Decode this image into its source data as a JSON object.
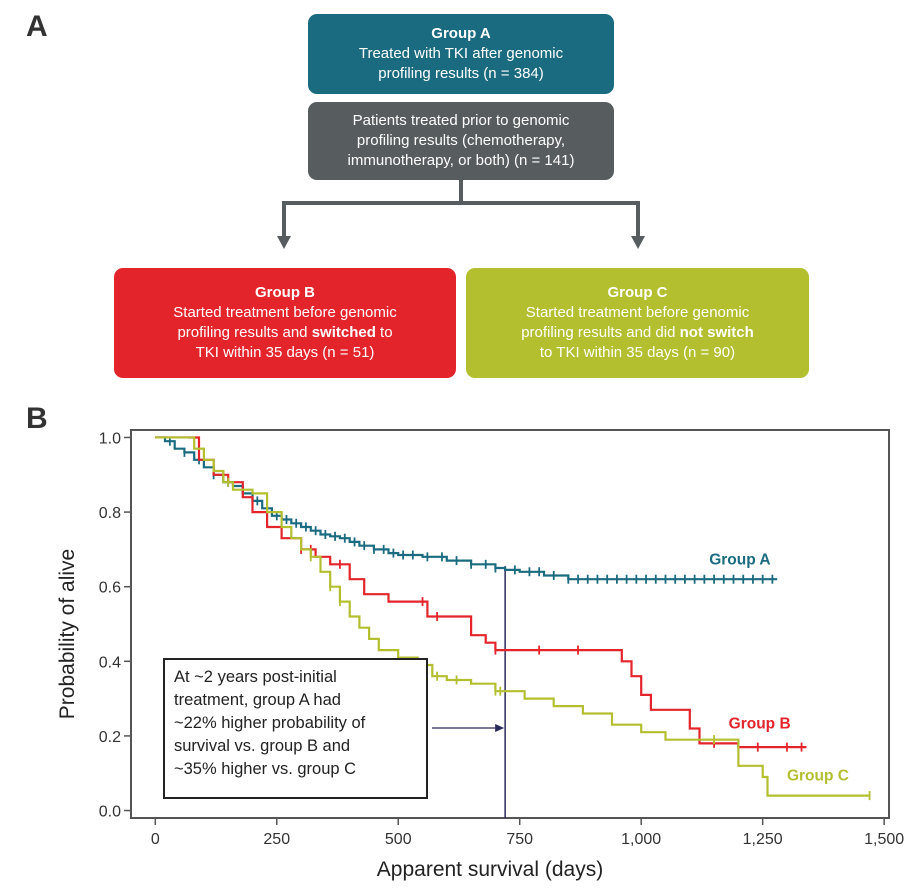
{
  "panelA": {
    "label": "A",
    "groupA": {
      "title": "Group A",
      "lines": [
        "Treated with TKI after genomic",
        "profiling results (n = 384)"
      ]
    },
    "prior": {
      "lines": [
        "Patients treated prior to genomic",
        "profiling results (chemotherapy,",
        "immunotherapy, or both) (n = 141)"
      ]
    },
    "groupB": {
      "title": "Group B",
      "line1": "Started treatment before genomic",
      "line2_pre": "profiling results and ",
      "line2_bold": "switched",
      "line2_post": " to",
      "line3": "TKI within 35 days (n = 51)"
    },
    "groupC": {
      "title": "Group C",
      "line1": "Started treatment before genomic",
      "line2_pre": "profiling results and did ",
      "line2_bold": "not switch",
      "line3": "to TKI within 35 days (n = 90)"
    }
  },
  "panelB": {
    "label": "B",
    "annotation_lines": [
      "At ~2 years post-initial",
      "treatment, group A had",
      "~22% higher probability of",
      "survival vs. group B and",
      "~35% higher vs. group C"
    ]
  },
  "colors": {
    "groupA": "#1a6b80",
    "groupB": "#e3242b",
    "groupC": "#b3bf2f",
    "prior": "#575c5f",
    "arrow": "#575c5f",
    "refline": "#2a2a5a"
  },
  "chart_data": {
    "type": "line",
    "title": "",
    "xlabel": "Apparent survival (days)",
    "ylabel": "Probability of alive",
    "xlim": [
      -50,
      1510
    ],
    "ylim": [
      -0.02,
      1.02
    ],
    "xticks": [
      0,
      250,
      500,
      750,
      1000,
      1250,
      1500
    ],
    "xtick_labels": [
      "0",
      "250",
      "500",
      "750",
      "1,000",
      "1,250",
      "1,500"
    ],
    "yticks": [
      0.0,
      0.2,
      0.4,
      0.6,
      0.8,
      1.0
    ],
    "ytick_labels": [
      "0.0",
      "0.2",
      "0.4",
      "0.6",
      "0.8",
      "1.0"
    ],
    "reference_line_x": 720,
    "series": [
      {
        "name": "Group A",
        "color": "#1a6b80",
        "step": true,
        "x": [
          0,
          20,
          40,
          60,
          80,
          100,
          120,
          140,
          160,
          180,
          200,
          220,
          240,
          260,
          280,
          300,
          320,
          340,
          360,
          380,
          400,
          420,
          450,
          480,
          500,
          550,
          600,
          650,
          700,
          720,
          750,
          800,
          850,
          900,
          1000,
          1100,
          1200,
          1280
        ],
        "y": [
          1.0,
          0.99,
          0.97,
          0.96,
          0.94,
          0.92,
          0.9,
          0.88,
          0.87,
          0.85,
          0.83,
          0.81,
          0.79,
          0.78,
          0.77,
          0.76,
          0.75,
          0.74,
          0.735,
          0.73,
          0.72,
          0.71,
          0.7,
          0.69,
          0.685,
          0.68,
          0.67,
          0.66,
          0.65,
          0.645,
          0.64,
          0.63,
          0.62,
          0.62,
          0.62,
          0.62,
          0.62,
          0.62
        ],
        "censor_x": [
          30,
          60,
          90,
          120,
          150,
          180,
          210,
          230,
          250,
          270,
          290,
          310,
          330,
          350,
          370,
          390,
          410,
          430,
          450,
          470,
          490,
          510,
          530,
          560,
          590,
          620,
          650,
          680,
          700,
          740,
          770,
          790,
          820,
          850,
          870,
          890,
          910,
          930,
          950,
          970,
          990,
          1010,
          1030,
          1050,
          1070,
          1090,
          1110,
          1130,
          1150,
          1170,
          1190,
          1210,
          1230,
          1250,
          1270
        ]
      },
      {
        "name": "Group B",
        "color": "#e3242b",
        "step": true,
        "x": [
          0,
          70,
          90,
          120,
          150,
          180,
          200,
          230,
          260,
          300,
          330,
          360,
          400,
          430,
          480,
          500,
          560,
          600,
          650,
          680,
          700,
          760,
          800,
          900,
          960,
          980,
          1000,
          1020,
          1040,
          1100,
          1120,
          1200,
          1280,
          1340
        ],
        "y": [
          1.0,
          1.0,
          0.94,
          0.9,
          0.88,
          0.84,
          0.8,
          0.76,
          0.73,
          0.7,
          0.68,
          0.66,
          0.62,
          0.58,
          0.56,
          0.56,
          0.52,
          0.52,
          0.47,
          0.45,
          0.43,
          0.43,
          0.43,
          0.43,
          0.4,
          0.36,
          0.31,
          0.27,
          0.27,
          0.22,
          0.18,
          0.17,
          0.17,
          0.17
        ],
        "censor_x": [
          140,
          300,
          320,
          380,
          550,
          580,
          700,
          790,
          870,
          1150,
          1240,
          1300,
          1330
        ]
      },
      {
        "name": "Group C",
        "color": "#b3bf2f",
        "step": true,
        "x": [
          0,
          80,
          100,
          120,
          140,
          160,
          200,
          230,
          260,
          280,
          300,
          320,
          340,
          360,
          380,
          400,
          420,
          440,
          460,
          500,
          540,
          570,
          600,
          650,
          700,
          760,
          820,
          880,
          940,
          1000,
          1050,
          1100,
          1150,
          1200,
          1250,
          1260,
          1300,
          1470
        ],
        "y": [
          1.0,
          0.97,
          0.94,
          0.91,
          0.88,
          0.86,
          0.85,
          0.8,
          0.76,
          0.73,
          0.7,
          0.68,
          0.64,
          0.6,
          0.56,
          0.52,
          0.49,
          0.46,
          0.43,
          0.41,
          0.39,
          0.36,
          0.35,
          0.34,
          0.32,
          0.3,
          0.28,
          0.26,
          0.23,
          0.21,
          0.19,
          0.19,
          0.19,
          0.12,
          0.09,
          0.04,
          0.04,
          0.04
        ],
        "censor_x": [
          150,
          320,
          360,
          380,
          580,
          620,
          700,
          710,
          1150,
          1470
        ]
      }
    ],
    "series_labels": [
      "Group A",
      "Group B",
      "Group C"
    ]
  }
}
